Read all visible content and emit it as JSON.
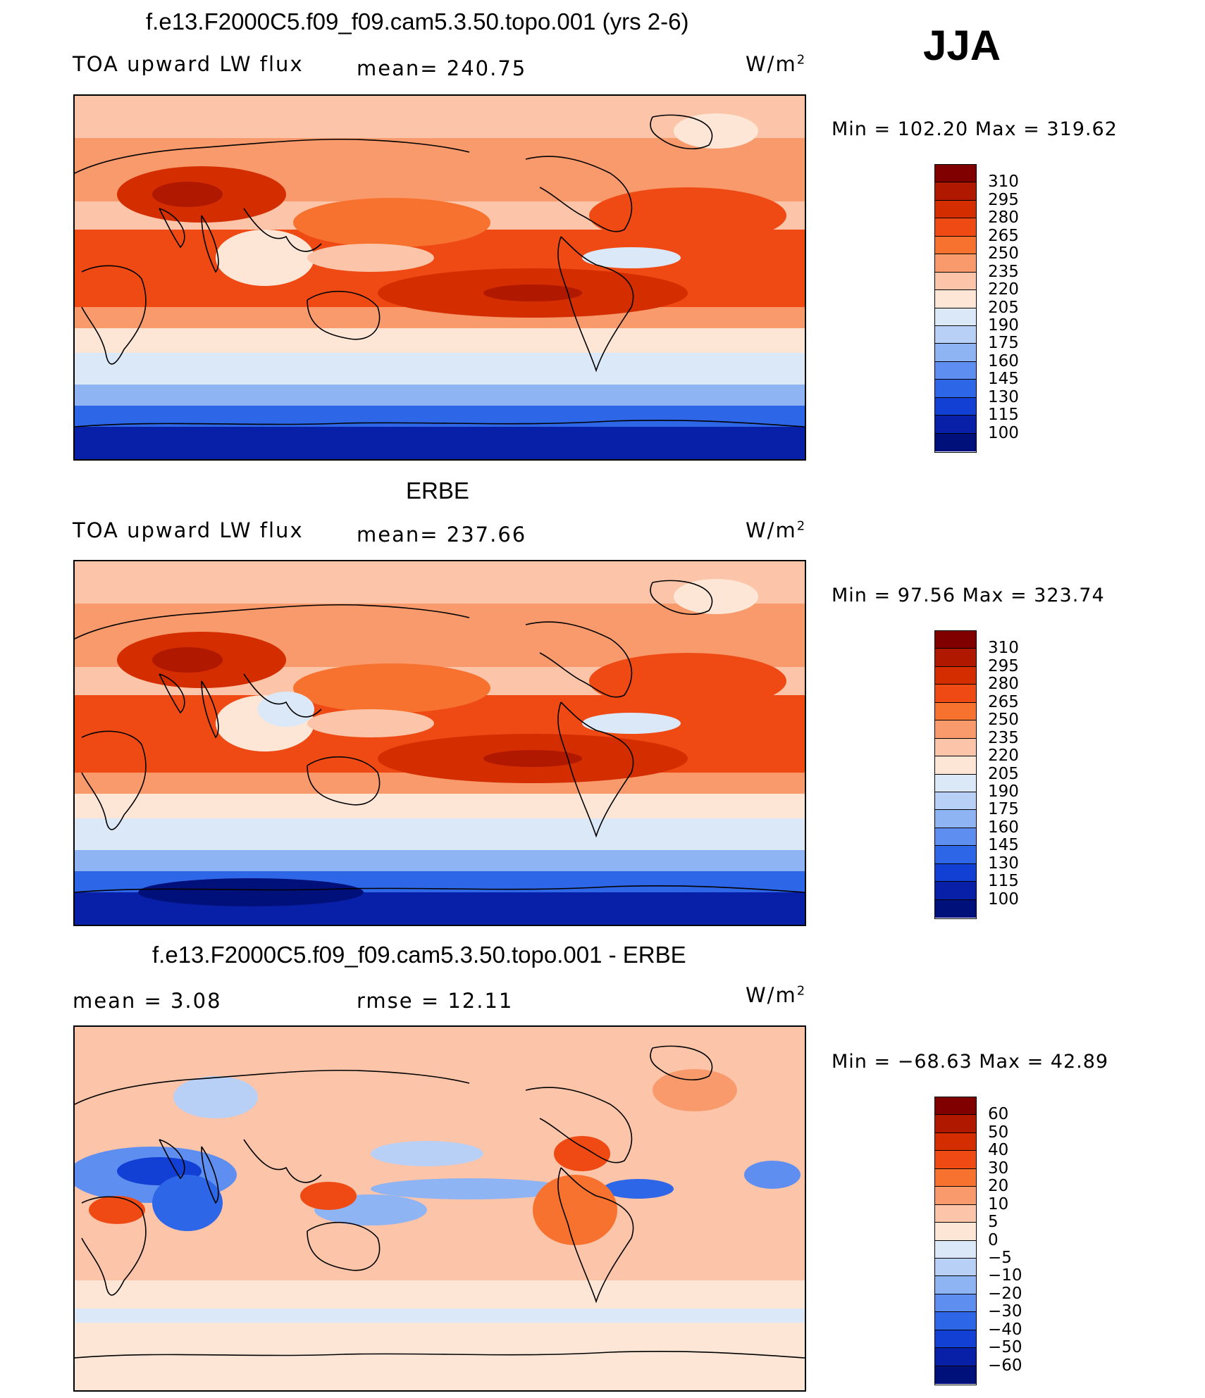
{
  "season": "JJA",
  "panels": [
    {
      "title": "f.e13.F2000C5.f09_f09.cam5.3.50.topo.001 (yrs 2-6)",
      "left_label": "TOA upward LW flux",
      "center_label": "mean=  240.75",
      "units": "W/m",
      "units_sup": "2",
      "minmax": "Min  =  102.20  Max  =  319.62",
      "levels": [
        "310",
        "295",
        "280",
        "265",
        "250",
        "235",
        "220",
        "205",
        "190",
        "175",
        "160",
        "145",
        "130",
        "115",
        "100"
      ]
    },
    {
      "title": "ERBE",
      "left_label": "TOA upward LW flux",
      "center_label": "mean=  237.66",
      "units": "W/m",
      "units_sup": "2",
      "minmax": "Min  =    97.56  Max  =  323.74",
      "levels": [
        "310",
        "295",
        "280",
        "265",
        "250",
        "235",
        "220",
        "205",
        "190",
        "175",
        "160",
        "145",
        "130",
        "115",
        "100"
      ]
    },
    {
      "title": "f.e13.F2000C5.f09_f09.cam5.3.50.topo.001 - ERBE",
      "left_label": "mean  =     3.08",
      "center_label": "rmse  =    12.11",
      "units": "W/m",
      "units_sup": "2",
      "minmax": "Min  =  −68.63  Max  =    42.89",
      "levels": [
        "60",
        "50",
        "40",
        "30",
        "20",
        "10",
        "5",
        "0",
        "−5",
        "−10",
        "−20",
        "−30",
        "−40",
        "−50",
        "−60"
      ]
    }
  ],
  "colorbar_colors": [
    "#800000",
    "#b01800",
    "#d42e00",
    "#ef4a14",
    "#f7722e",
    "#f99a6c",
    "#fcc4a8",
    "#fde6d6",
    "#dbe8f8",
    "#b8d0f6",
    "#8fb4f4",
    "#5e8ff0",
    "#2e66e8",
    "#1240d4",
    "#0820a8",
    "#00107a"
  ]
}
